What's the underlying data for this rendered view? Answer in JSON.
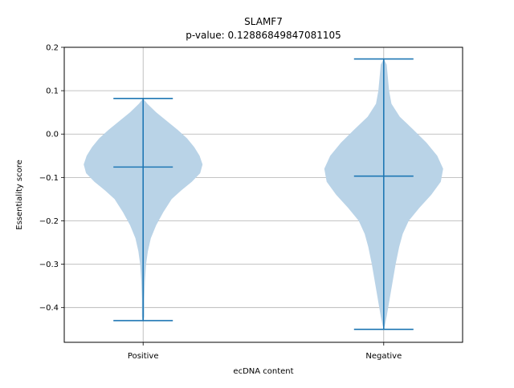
{
  "chart_data": {
    "type": "violin",
    "title": "SLAMF7",
    "subtitle": "p-value: 0.12886849847081105",
    "xlabel": "ecDNA content",
    "ylabel": "Essentiality score",
    "categories": [
      "Positive",
      "Negative"
    ],
    "ylim": [
      -0.48,
      0.2
    ],
    "yticks": [
      0.2,
      0.1,
      0.0,
      -0.1,
      -0.2,
      -0.3,
      -0.4
    ],
    "ytick_labels": [
      "0.2",
      "0.1",
      "0.0",
      "−0.1",
      "−0.2",
      "−0.3",
      "−0.4"
    ],
    "grid": true,
    "colors": {
      "fill": "#b9d3e7",
      "line": "#1f77b4",
      "grid": "#b0b0b0"
    },
    "series": [
      {
        "category": "Positive",
        "max": 0.082,
        "median": -0.076,
        "min": -0.43,
        "density_profile": [
          [
            0.082,
            0.0
          ],
          [
            0.07,
            0.07
          ],
          [
            0.05,
            0.22
          ],
          [
            0.03,
            0.4
          ],
          [
            0.01,
            0.58
          ],
          [
            -0.01,
            0.74
          ],
          [
            -0.03,
            0.86
          ],
          [
            -0.05,
            0.95
          ],
          [
            -0.07,
            1.0
          ],
          [
            -0.09,
            0.96
          ],
          [
            -0.11,
            0.82
          ],
          [
            -0.13,
            0.64
          ],
          [
            -0.15,
            0.48
          ],
          [
            -0.18,
            0.34
          ],
          [
            -0.21,
            0.22
          ],
          [
            -0.24,
            0.13
          ],
          [
            -0.27,
            0.08
          ],
          [
            -0.3,
            0.05
          ],
          [
            -0.34,
            0.03
          ],
          [
            -0.38,
            0.02
          ],
          [
            -0.42,
            0.02
          ],
          [
            -0.43,
            0.01
          ]
        ]
      },
      {
        "category": "Negative",
        "max": 0.173,
        "median": -0.097,
        "min": -0.45,
        "density_profile": [
          [
            0.173,
            0.0
          ],
          [
            0.16,
            0.05
          ],
          [
            0.13,
            0.07
          ],
          [
            0.1,
            0.09
          ],
          [
            0.07,
            0.13
          ],
          [
            0.04,
            0.27
          ],
          [
            0.01,
            0.5
          ],
          [
            -0.02,
            0.72
          ],
          [
            -0.05,
            0.9
          ],
          [
            -0.08,
            1.0
          ],
          [
            -0.11,
            0.96
          ],
          [
            -0.14,
            0.8
          ],
          [
            -0.17,
            0.6
          ],
          [
            -0.2,
            0.42
          ],
          [
            -0.23,
            0.32
          ],
          [
            -0.26,
            0.26
          ],
          [
            -0.3,
            0.2
          ],
          [
            -0.34,
            0.15
          ],
          [
            -0.38,
            0.1
          ],
          [
            -0.42,
            0.05
          ],
          [
            -0.44,
            0.02
          ],
          [
            -0.45,
            0.0
          ]
        ]
      }
    ]
  }
}
